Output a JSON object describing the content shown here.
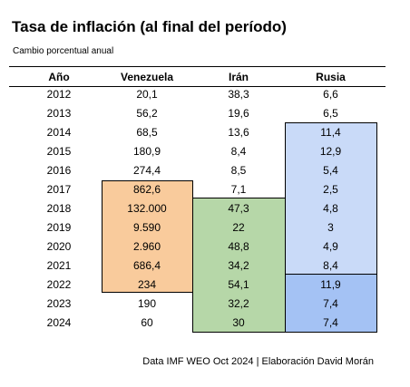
{
  "title": "Tasa de inflación (al final del período)",
  "subtitle": "Cambio porcentual anual",
  "footer": "Data IMF WEO Oct 2024 | Elaboración David Morán",
  "colors": {
    "venezuela_highlight": "#f9cb9c",
    "iran_highlight": "#b6d7a8",
    "russia_light": "#c9daf8",
    "russia_dark": "#a4c2f4"
  },
  "chart_data": {
    "type": "table",
    "columns": [
      "Año",
      "Venezuela",
      "Irán",
      "Rusia"
    ],
    "rows": [
      [
        "2012",
        "20,1",
        "38,3",
        "6,6"
      ],
      [
        "2013",
        "56,2",
        "19,6",
        "6,5"
      ],
      [
        "2014",
        "68,5",
        "13,6",
        "11,4"
      ],
      [
        "2015",
        "180,9",
        "8,4",
        "12,9"
      ],
      [
        "2016",
        "274,4",
        "8,5",
        "5,4"
      ],
      [
        "2017",
        "862,6",
        "7,1",
        "2,5"
      ],
      [
        "2018",
        "132.000",
        "47,3",
        "4,8"
      ],
      [
        "2019",
        "9.590",
        "22",
        "3"
      ],
      [
        "2020",
        "2.960",
        "48,8",
        "4,9"
      ],
      [
        "2021",
        "686,4",
        "34,2",
        "8,4"
      ],
      [
        "2022",
        "234",
        "54,1",
        "11,9"
      ],
      [
        "2023",
        "190",
        "32,2",
        "7,4"
      ],
      [
        "2024",
        "60",
        "30",
        "7,4"
      ]
    ],
    "highlights": {
      "venezuela": [
        "2017",
        "2022"
      ],
      "iran": [
        "2018",
        "2024"
      ],
      "russia_light": [
        "2014",
        "2021"
      ],
      "russia_dark": [
        "2022",
        "2024"
      ]
    }
  }
}
